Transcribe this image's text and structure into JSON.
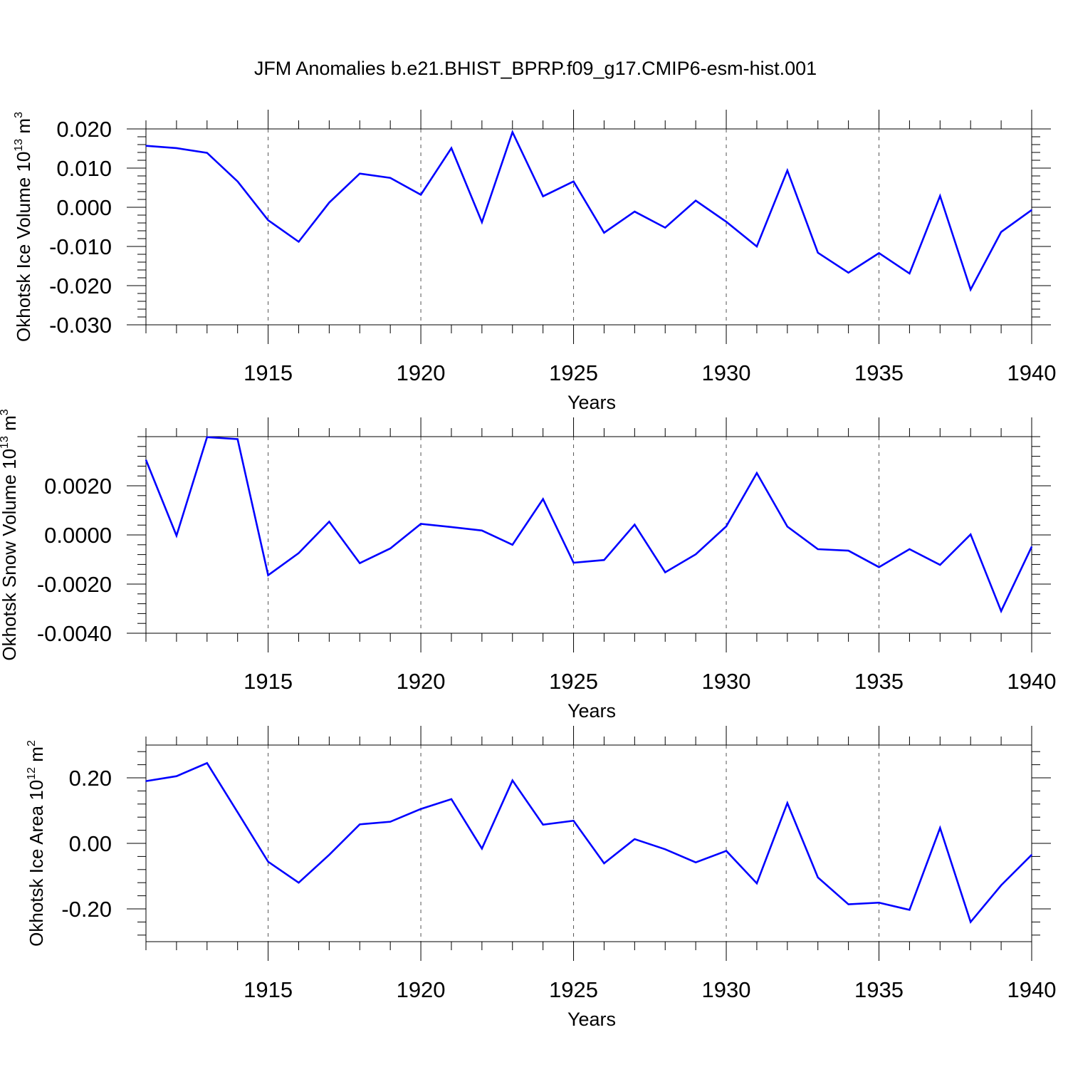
{
  "title": "JFM Anomalies b.e21.BHIST_BPRP.f09_g17.CMIP6-esm-hist.001",
  "colors": {
    "line": "#0000ff",
    "axis": "#000000",
    "grid": "#555555"
  },
  "chart_data": [
    {
      "type": "line",
      "xlabel": "Years",
      "ylabel": {
        "text": "Okhotsk Ice Volume 10",
        "sup1": "13",
        "mid": " m",
        "sup2": "3"
      },
      "xlim": [
        1911,
        1940
      ],
      "ylim": [
        -0.03,
        0.02
      ],
      "x_ticks": [
        1915,
        1920,
        1925,
        1930,
        1935,
        1940
      ],
      "y_ticks": [
        -0.03,
        -0.02,
        -0.01,
        0.0,
        0.01,
        0.02
      ],
      "y_tick_labels": [
        "-0.030",
        "-0.020",
        "-0.010",
        "0.000",
        "0.010",
        "0.020"
      ],
      "grid": "vertical dashed at major x ticks",
      "series": [
        {
          "x": [
            1911,
            1912,
            1913,
            1914,
            1915,
            1916,
            1917,
            1918,
            1919,
            1920,
            1921,
            1922,
            1923,
            1924,
            1925,
            1926,
            1927,
            1928,
            1929,
            1930,
            1931,
            1932,
            1933,
            1934,
            1935,
            1936,
            1937,
            1938,
            1939,
            1940
          ],
          "values": [
            0.0157,
            0.0151,
            0.0139,
            0.0066,
            -0.0033,
            -0.0088,
            0.0012,
            0.0086,
            0.0075,
            0.0032,
            0.0151,
            -0.0038,
            0.0192,
            0.0028,
            0.0066,
            -0.0065,
            -0.0011,
            -0.0052,
            0.0017,
            -0.0037,
            -0.01,
            0.0094,
            -0.0116,
            -0.0167,
            -0.0117,
            -0.0169,
            0.0029,
            -0.021,
            -0.0063,
            -0.0007
          ]
        }
      ]
    },
    {
      "type": "line",
      "xlabel": "Years",
      "ylabel": {
        "text": "Okhotsk Snow Volume 10",
        "sup1": "13",
        "mid": " m",
        "sup2": "3"
      },
      "xlim": [
        1911,
        1940
      ],
      "ylim": [
        -0.004,
        0.004
      ],
      "x_ticks": [
        1915,
        1920,
        1925,
        1930,
        1935,
        1940
      ],
      "y_ticks": [
        -0.004,
        -0.002,
        0.0,
        0.002
      ],
      "y_tick_labels": [
        "-0.0040",
        "-0.0020",
        "0.0000",
        "0.0020"
      ],
      "grid": "vertical dashed at major x ticks",
      "series": [
        {
          "x": [
            1911,
            1912,
            1913,
            1914,
            1915,
            1916,
            1917,
            1918,
            1919,
            1920,
            1921,
            1922,
            1923,
            1924,
            1925,
            1926,
            1927,
            1928,
            1929,
            1930,
            1931,
            1932,
            1933,
            1934,
            1935,
            1936,
            1937,
            1938,
            1939,
            1940
          ],
          "values": [
            0.00305,
            -3e-05,
            0.00398,
            0.0039,
            -0.00164,
            -0.00074,
            0.00054,
            -0.00115,
            -0.00055,
            0.00045,
            0.00032,
            0.00018,
            -0.0004,
            0.00146,
            -0.00113,
            -0.00102,
            0.00042,
            -0.00152,
            -0.00079,
            0.00035,
            0.00252,
            0.00034,
            -0.00058,
            -0.00064,
            -0.00131,
            -0.00058,
            -0.00122,
            2e-05,
            -0.0031,
            -0.00048
          ]
        }
      ]
    },
    {
      "type": "line",
      "xlabel": "Years",
      "ylabel": {
        "text": "Okhotsk Ice Area 10",
        "sup1": "12",
        "mid": " m",
        "sup2": "2"
      },
      "xlim": [
        1911,
        1940
      ],
      "ylim": [
        -0.3,
        0.3
      ],
      "x_ticks": [
        1915,
        1920,
        1925,
        1930,
        1935,
        1940
      ],
      "y_ticks": [
        -0.2,
        0.0,
        0.2
      ],
      "y_tick_labels": [
        "-0.20",
        "0.00",
        "0.20"
      ],
      "grid": "vertical dashed at major x ticks",
      "series": [
        {
          "x": [
            1911,
            1912,
            1913,
            1914,
            1915,
            1916,
            1917,
            1918,
            1919,
            1920,
            1921,
            1922,
            1923,
            1924,
            1925,
            1926,
            1927,
            1928,
            1929,
            1930,
            1931,
            1932,
            1933,
            1934,
            1935,
            1936,
            1937,
            1938,
            1939,
            1940
          ],
          "values": [
            0.19,
            0.205,
            0.245,
            0.095,
            -0.056,
            -0.12,
            -0.035,
            0.058,
            0.066,
            0.105,
            0.135,
            -0.016,
            0.192,
            0.057,
            0.069,
            -0.061,
            0.013,
            -0.018,
            -0.058,
            -0.023,
            -0.122,
            0.123,
            -0.104,
            -0.186,
            -0.181,
            -0.203,
            0.047,
            -0.24,
            -0.128,
            -0.035
          ]
        }
      ]
    }
  ]
}
